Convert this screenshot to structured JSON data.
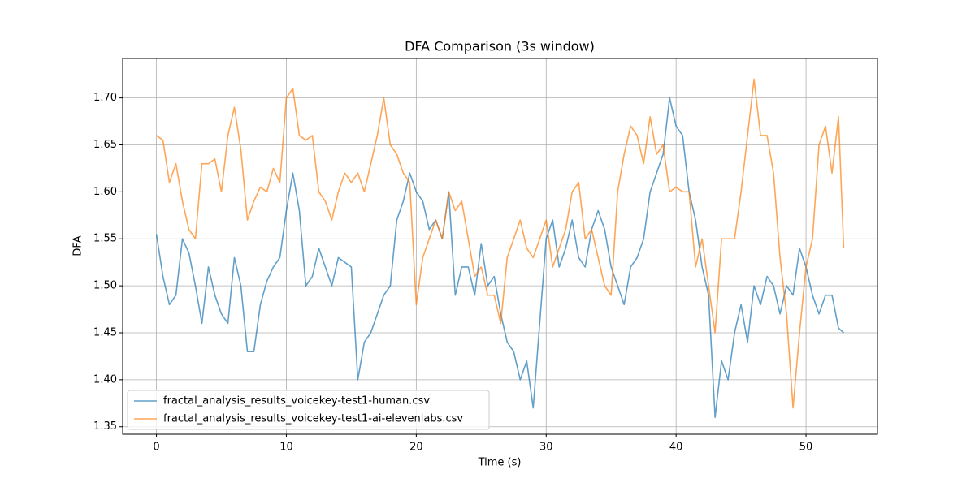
{
  "chart_data": {
    "type": "line",
    "title": "DFA Comparison (3s window)",
    "xlabel": "Time (s)",
    "ylabel": "DFA",
    "x": [
      0,
      0.5,
      1,
      1.5,
      2,
      2.5,
      3,
      3.5,
      4,
      4.5,
      5,
      5.5,
      6,
      6.5,
      7,
      7.5,
      8,
      8.5,
      9,
      9.5,
      10,
      10.5,
      11,
      11.5,
      12,
      12.5,
      13,
      13.5,
      14,
      14.5,
      15,
      15.5,
      16,
      16.5,
      17,
      17.5,
      18,
      18.5,
      19,
      19.5,
      20,
      20.5,
      21,
      21.5,
      22,
      22.5,
      23,
      23.5,
      24,
      24.5,
      25,
      25.5,
      26,
      26.5,
      27,
      27.5,
      28,
      28.5,
      29,
      29.5,
      30,
      30.5,
      31,
      31.5,
      32,
      32.5,
      33,
      33.5,
      34,
      34.5,
      35,
      35.5,
      36,
      36.5,
      37,
      37.5,
      38,
      38.5,
      39,
      39.5,
      40,
      40.5,
      41,
      41.5,
      42,
      42.5,
      43,
      43.5,
      44,
      44.5,
      45,
      45.5,
      46,
      46.5,
      47,
      47.5,
      48,
      48.5,
      49,
      49.5,
      50,
      50.5,
      51,
      51.5,
      52,
      52.5,
      52.9
    ],
    "series": [
      {
        "name": "fractal_analysis_results_voicekey-test1-human.csv",
        "color": "#1f77b4",
        "values": [
          1.555,
          1.51,
          1.48,
          1.49,
          1.55,
          1.535,
          1.5,
          1.46,
          1.52,
          1.49,
          1.47,
          1.46,
          1.53,
          1.5,
          1.43,
          1.43,
          1.48,
          1.505,
          1.52,
          1.53,
          1.58,
          1.62,
          1.58,
          1.5,
          1.51,
          1.54,
          1.52,
          1.5,
          1.53,
          1.525,
          1.52,
          1.4,
          1.44,
          1.45,
          1.47,
          1.49,
          1.5,
          1.57,
          1.59,
          1.62,
          1.6,
          1.59,
          1.56,
          1.57,
          1.55,
          1.6,
          1.49,
          1.52,
          1.52,
          1.49,
          1.545,
          1.5,
          1.51,
          1.47,
          1.44,
          1.43,
          1.4,
          1.42,
          1.37,
          1.46,
          1.55,
          1.57,
          1.52,
          1.54,
          1.57,
          1.53,
          1.52,
          1.56,
          1.58,
          1.56,
          1.52,
          1.5,
          1.48,
          1.52,
          1.53,
          1.55,
          1.6,
          1.62,
          1.64,
          1.7,
          1.67,
          1.66,
          1.6,
          1.57,
          1.52,
          1.49,
          1.36,
          1.42,
          1.4,
          1.45,
          1.48,
          1.44,
          1.5,
          1.48,
          1.51,
          1.5,
          1.47,
          1.5,
          1.49,
          1.54,
          1.52,
          1.49,
          1.47,
          1.49,
          1.49,
          1.455,
          1.45
        ]
      },
      {
        "name": "fractal_analysis_results_voicekey-test1-ai-elevenlabs.csv",
        "color": "#ff7f0e",
        "values": [
          1.66,
          1.655,
          1.61,
          1.63,
          1.59,
          1.56,
          1.55,
          1.63,
          1.63,
          1.635,
          1.6,
          1.66,
          1.69,
          1.645,
          1.57,
          1.59,
          1.605,
          1.6,
          1.625,
          1.61,
          1.7,
          1.71,
          1.66,
          1.655,
          1.66,
          1.6,
          1.59,
          1.57,
          1.6,
          1.62,
          1.61,
          1.62,
          1.6,
          1.63,
          1.66,
          1.7,
          1.65,
          1.64,
          1.62,
          1.61,
          1.48,
          1.53,
          1.55,
          1.57,
          1.55,
          1.6,
          1.58,
          1.59,
          1.55,
          1.51,
          1.52,
          1.49,
          1.49,
          1.46,
          1.53,
          1.55,
          1.57,
          1.54,
          1.53,
          1.55,
          1.57,
          1.52,
          1.54,
          1.56,
          1.6,
          1.61,
          1.55,
          1.56,
          1.53,
          1.5,
          1.49,
          1.6,
          1.64,
          1.67,
          1.66,
          1.63,
          1.68,
          1.64,
          1.65,
          1.6,
          1.605,
          1.6,
          1.6,
          1.52,
          1.55,
          1.5,
          1.45,
          1.55,
          1.55,
          1.55,
          1.6,
          1.66,
          1.72,
          1.66,
          1.66,
          1.62,
          1.53,
          1.47,
          1.37,
          1.45,
          1.52,
          1.55,
          1.65,
          1.67,
          1.62,
          1.68,
          1.54
        ]
      }
    ],
    "xlim": [
      -2.6,
      55.5
    ],
    "ylim": [
      1.342,
      1.742
    ],
    "xticks": [
      0,
      10,
      20,
      30,
      40,
      50
    ],
    "yticks": [
      1.35,
      {
        "value": 1.4,
        "label": "1.40"
      },
      1.45,
      {
        "value": 1.5,
        "label": "1.50"
      },
      1.55,
      {
        "value": 1.6,
        "label": "1.60"
      },
      1.65,
      {
        "value": 1.7,
        "label": "1.70"
      }
    ],
    "grid": true,
    "legend": "lower left"
  }
}
